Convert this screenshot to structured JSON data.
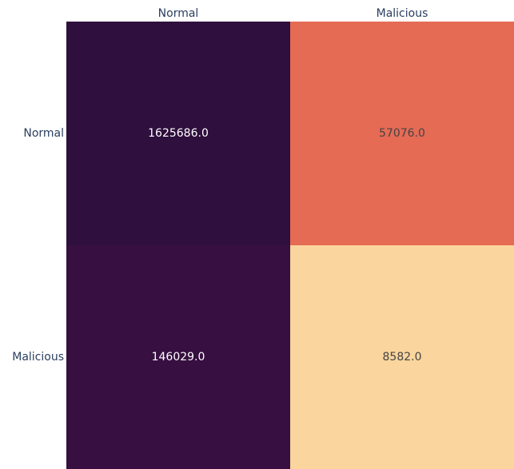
{
  "chart_data": {
    "type": "heatmap",
    "x": [
      "Normal",
      "Malicious"
    ],
    "y": [
      "Normal",
      "Malicious"
    ],
    "values": [
      [
        1625686,
        57076
      ],
      [
        146029,
        8582
      ]
    ],
    "value_labels": [
      [
        "1625686.0",
        "57076.0"
      ],
      [
        "146029.0",
        "8582.0"
      ]
    ],
    "colors": [
      [
        "#2f0f3d",
        "#e56b55"
      ],
      [
        "#370f40",
        "#fad59d"
      ]
    ]
  }
}
